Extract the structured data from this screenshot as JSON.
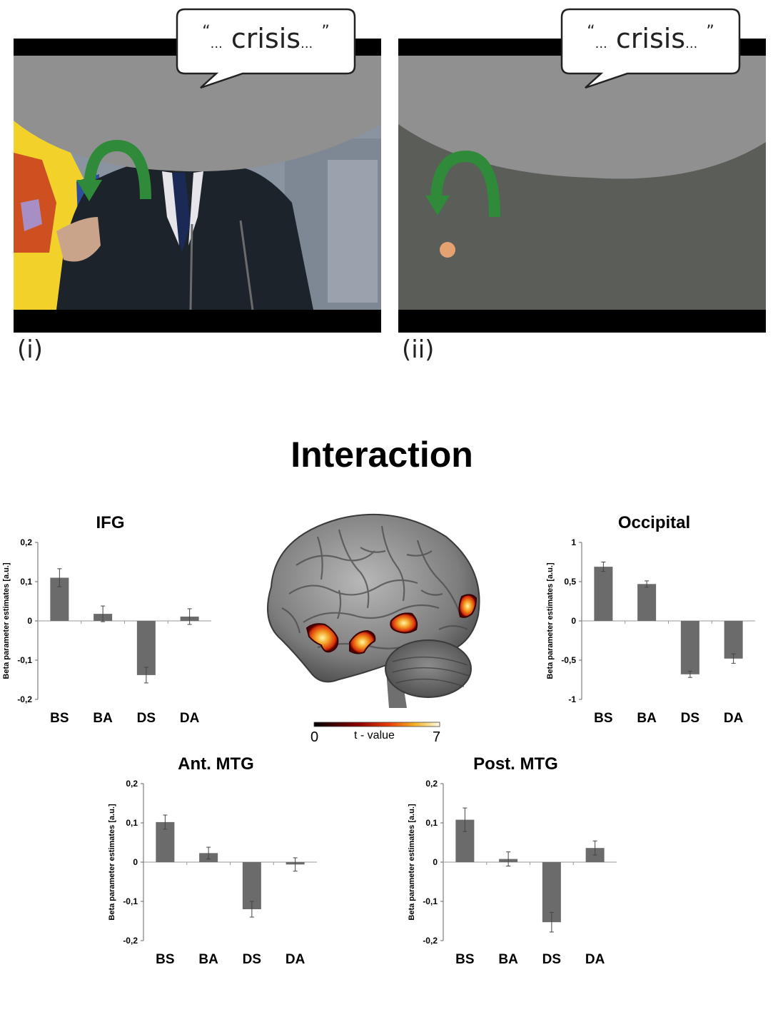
{
  "panels": {
    "speech_word": "crisis",
    "open_quote": "“",
    "close_quote": "”",
    "ellipsis": "...",
    "label_i": "(i)",
    "label_ii": "(ii)"
  },
  "figure_title": "Interaction",
  "colorbar": {
    "min_label": "0",
    "max_label": "7",
    "label": "t - value"
  },
  "colors": {
    "bar": "#6b6b6b",
    "arrow": "#2f8a3a",
    "flag_yellow": "#f2d22a",
    "activation": "#e84a10"
  },
  "icons": [
    "curved-arrow-icon",
    "speech-bubble-icon",
    "dot-icon",
    "brain-render-icon"
  ],
  "chart_data": [
    {
      "type": "bar",
      "title": "IFG",
      "categories": [
        "BS",
        "BA",
        "DS",
        "DA"
      ],
      "values": [
        0.11,
        0.018,
        -0.138,
        0.011
      ],
      "errors": [
        0.023,
        0.02,
        0.02,
        0.02
      ],
      "ylabel": "Beta parameter estimates [a.u.]",
      "ylim": [
        -0.2,
        0.2
      ],
      "yticks": [
        -0.2,
        -0.1,
        0,
        0.1,
        0.2
      ],
      "ytick_labels": [
        "-0,2",
        "-0,1",
        "0",
        "0,1",
        "0,2"
      ]
    },
    {
      "type": "bar",
      "title": "Occipital",
      "categories": [
        "BS",
        "BA",
        "DS",
        "DA"
      ],
      "values": [
        0.69,
        0.47,
        -0.68,
        -0.48
      ],
      "errors": [
        0.06,
        0.04,
        0.04,
        0.06
      ],
      "ylabel": "Beta parameter estimates [a.u.]",
      "ylim": [
        -1,
        1
      ],
      "yticks": [
        -1,
        -0.5,
        0,
        0.5,
        1
      ],
      "ytick_labels": [
        "-1",
        "-0,5",
        "0",
        "0,5",
        "1"
      ]
    },
    {
      "type": "bar",
      "title": "Ant. MTG",
      "categories": [
        "BS",
        "BA",
        "DS",
        "DA"
      ],
      "values": [
        0.102,
        0.023,
        -0.12,
        -0.006
      ],
      "errors": [
        0.018,
        0.015,
        0.02,
        0.017
      ],
      "ylabel": "Beta parameter estimates [a.u.]",
      "ylim": [
        -0.2,
        0.2
      ],
      "yticks": [
        -0.2,
        -0.1,
        0,
        0.1,
        0.2
      ],
      "ytick_labels": [
        "-0,2",
        "-0,1",
        "0",
        "0,1",
        "0,2"
      ]
    },
    {
      "type": "bar",
      "title": "Post. MTG",
      "categories": [
        "BS",
        "BA",
        "DS",
        "DA"
      ],
      "values": [
        0.108,
        0.008,
        -0.153,
        0.036
      ],
      "errors": [
        0.03,
        0.018,
        0.025,
        0.018
      ],
      "ylabel": "Beta parameter estimates [a.u.]",
      "ylim": [
        -0.2,
        0.2
      ],
      "yticks": [
        -0.2,
        -0.1,
        0,
        0.1,
        0.2
      ],
      "ytick_labels": [
        "-0,2",
        "-0,1",
        "0",
        "0,1",
        "0,2"
      ]
    }
  ]
}
